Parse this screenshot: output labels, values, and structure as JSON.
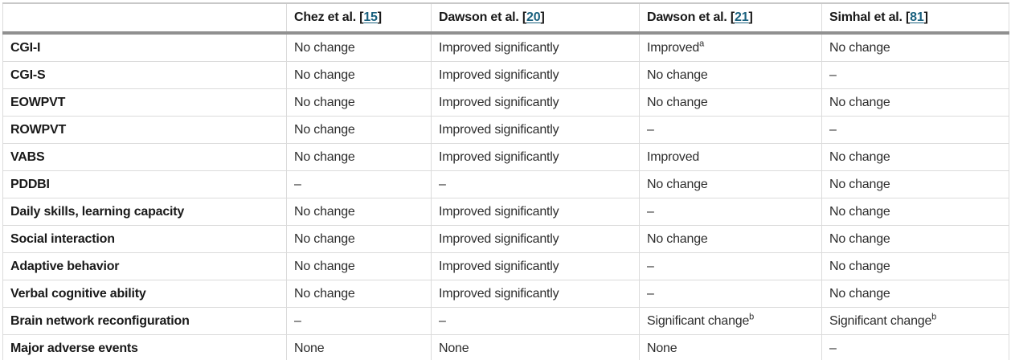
{
  "colors": {
    "citation_link": "#1a617f",
    "header_rule": "#909090",
    "bottom_rule": "#b4b4b4"
  },
  "table": {
    "columns": [
      {
        "prefix": "Chez et al. [",
        "ref": "15",
        "suffix": "]"
      },
      {
        "prefix": "Dawson et al. [",
        "ref": "20",
        "suffix": "]"
      },
      {
        "prefix": "Dawson et al. [",
        "ref": "21",
        "suffix": "]"
      },
      {
        "prefix": "Simhal et al. [",
        "ref": "81",
        "suffix": "]"
      }
    ],
    "rows": [
      {
        "label": "CGI-I",
        "cells": [
          {
            "text": "No change"
          },
          {
            "text": "Improved significantly"
          },
          {
            "text": "Improved",
            "sup": "a"
          },
          {
            "text": "No change"
          }
        ]
      },
      {
        "label": "CGI-S",
        "cells": [
          {
            "text": "No change"
          },
          {
            "text": "Improved significantly"
          },
          {
            "text": "No change"
          },
          {
            "text": "–"
          }
        ]
      },
      {
        "label": "EOWPVT",
        "cells": [
          {
            "text": "No change"
          },
          {
            "text": "Improved significantly"
          },
          {
            "text": "No change"
          },
          {
            "text": "No change"
          }
        ]
      },
      {
        "label": "ROWPVT",
        "cells": [
          {
            "text": "No change"
          },
          {
            "text": "Improved significantly"
          },
          {
            "text": "–"
          },
          {
            "text": "–"
          }
        ]
      },
      {
        "label": "VABS",
        "cells": [
          {
            "text": "No change"
          },
          {
            "text": "Improved significantly"
          },
          {
            "text": "Improved"
          },
          {
            "text": "No change"
          }
        ]
      },
      {
        "label": "PDDBI",
        "cells": [
          {
            "text": "–"
          },
          {
            "text": "–"
          },
          {
            "text": "No change"
          },
          {
            "text": "No change"
          }
        ]
      },
      {
        "label": "Daily skills, learning capacity",
        "cells": [
          {
            "text": "No change"
          },
          {
            "text": "Improved significantly"
          },
          {
            "text": "–"
          },
          {
            "text": "No change"
          }
        ]
      },
      {
        "label": "Social interaction",
        "cells": [
          {
            "text": "No change"
          },
          {
            "text": "Improved significantly"
          },
          {
            "text": "No change"
          },
          {
            "text": "No change"
          }
        ]
      },
      {
        "label": "Adaptive behavior",
        "cells": [
          {
            "text": "No change"
          },
          {
            "text": "Improved significantly"
          },
          {
            "text": "–"
          },
          {
            "text": "No change"
          }
        ]
      },
      {
        "label": "Verbal cognitive ability",
        "cells": [
          {
            "text": "No change"
          },
          {
            "text": "Improved significantly"
          },
          {
            "text": "–"
          },
          {
            "text": "No change"
          }
        ]
      },
      {
        "label": "Brain network reconfiguration",
        "cells": [
          {
            "text": "–"
          },
          {
            "text": "–"
          },
          {
            "text": "Significant change",
            "sup": "b"
          },
          {
            "text": "Significant change",
            "sup": "b"
          }
        ]
      },
      {
        "label": "Major adverse events",
        "cells": [
          {
            "text": "None"
          },
          {
            "text": "None"
          },
          {
            "text": "None"
          },
          {
            "text": "–"
          }
        ]
      }
    ]
  }
}
